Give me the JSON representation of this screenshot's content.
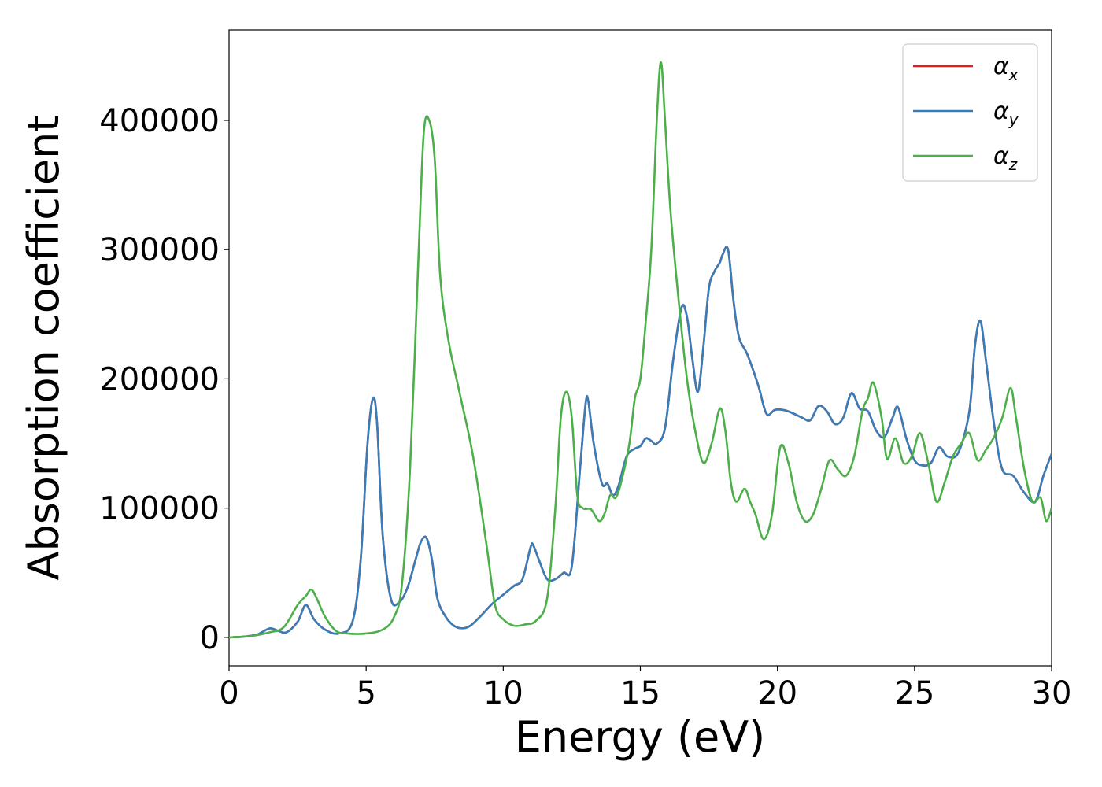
{
  "chart_data": {
    "type": "line",
    "title": "",
    "xlabel": "Energy (eV)",
    "ylabel": "Absorption coefficient",
    "xlim": [
      0,
      30
    ],
    "ylim": [
      -22000,
      470000
    ],
    "xticks": [
      0,
      5,
      10,
      15,
      20,
      25,
      30
    ],
    "yticks": [
      0,
      100000,
      200000,
      300000,
      400000
    ],
    "xtick_labels": [
      "0",
      "5",
      "10",
      "15",
      "20",
      "25",
      "30"
    ],
    "ytick_labels": [
      "0",
      "100000",
      "200000",
      "300000",
      "400000"
    ],
    "grid": false,
    "legend_position": "top-right",
    "series": [
      {
        "name": "x",
        "color": "#e41a1c",
        "x": [
          0,
          0.5,
          1,
          1.2,
          1.5,
          1.8,
          2.1,
          2.5,
          2.8,
          3.1,
          3.5,
          4,
          4.5,
          4.8,
          5.05,
          5.25,
          5.4,
          5.6,
          5.9,
          6.2,
          6.5,
          6.8,
          7.0,
          7.2,
          7.4,
          7.6,
          7.9,
          8.2,
          8.5,
          8.8,
          9.2,
          9.6,
          10,
          10.4,
          10.7,
          11.0,
          11.1,
          11.3,
          11.6,
          11.9,
          12.2,
          12.5,
          12.8,
          13.0,
          13.1,
          13.3,
          13.6,
          13.8,
          14.0,
          14.2,
          14.5,
          14.8,
          15.0,
          15.2,
          15.4,
          15.6,
          15.9,
          16.2,
          16.5,
          16.7,
          16.9,
          17.1,
          17.3,
          17.5,
          17.7,
          17.9,
          18.0,
          18.2,
          18.4,
          18.6,
          18.9,
          19.3,
          19.6,
          19.9,
          20.2,
          20.5,
          20.9,
          21.2,
          21.5,
          21.8,
          22.1,
          22.4,
          22.7,
          23.0,
          23.3,
          23.6,
          23.9,
          24.2,
          24.4,
          24.7,
          25.0,
          25.3,
          25.6,
          25.9,
          26.2,
          26.6,
          27.0,
          27.2,
          27.4,
          27.6,
          27.9,
          28.2,
          28.6,
          29.0,
          29.4,
          29.7,
          30.0
        ],
        "values": [
          0,
          500,
          2000,
          4000,
          7000,
          5000,
          4000,
          12000,
          25000,
          14000,
          6000,
          3000,
          12000,
          60000,
          150000,
          185000,
          165000,
          80000,
          30000,
          27000,
          38000,
          60000,
          74000,
          77000,
          60000,
          30000,
          16000,
          9000,
          7000,
          9000,
          17000,
          26000,
          33000,
          40000,
          45000,
          70000,
          71000,
          60000,
          45000,
          45000,
          50000,
          55000,
          130000,
          180000,
          183000,
          150000,
          119000,
          119000,
          110000,
          117000,
          140000,
          146000,
          148000,
          154000,
          152000,
          150000,
          162000,
          215000,
          255000,
          248000,
          215000,
          190000,
          225000,
          270000,
          283000,
          290000,
          296000,
          300000,
          260000,
          232000,
          219000,
          195000,
          173000,
          176000,
          176000,
          174000,
          170000,
          168000,
          179000,
          175000,
          165000,
          170000,
          189000,
          177000,
          175000,
          160000,
          155000,
          170000,
          178000,
          154000,
          137000,
          133000,
          135000,
          147000,
          140000,
          143000,
          175000,
          225000,
          245000,
          215000,
          165000,
          130000,
          125000,
          112000,
          105000,
          125000,
          142000
        ]
      },
      {
        "name": "y",
        "color": "#377eb8",
        "x": [
          0,
          0.5,
          1,
          1.2,
          1.5,
          1.8,
          2.1,
          2.5,
          2.8,
          3.1,
          3.5,
          4,
          4.5,
          4.8,
          5.05,
          5.25,
          5.4,
          5.6,
          5.9,
          6.2,
          6.5,
          6.8,
          7.0,
          7.2,
          7.4,
          7.6,
          7.9,
          8.2,
          8.5,
          8.8,
          9.2,
          9.6,
          10,
          10.4,
          10.7,
          11.0,
          11.1,
          11.3,
          11.6,
          11.9,
          12.2,
          12.5,
          12.8,
          13.0,
          13.1,
          13.3,
          13.6,
          13.8,
          14.0,
          14.2,
          14.5,
          14.8,
          15.0,
          15.2,
          15.4,
          15.6,
          15.9,
          16.2,
          16.5,
          16.7,
          16.9,
          17.1,
          17.3,
          17.5,
          17.7,
          17.9,
          18.0,
          18.2,
          18.4,
          18.6,
          18.9,
          19.3,
          19.6,
          19.9,
          20.2,
          20.5,
          20.9,
          21.2,
          21.5,
          21.8,
          22.1,
          22.4,
          22.7,
          23.0,
          23.3,
          23.6,
          23.9,
          24.2,
          24.4,
          24.7,
          25.0,
          25.3,
          25.6,
          25.9,
          26.2,
          26.6,
          27.0,
          27.2,
          27.4,
          27.6,
          27.9,
          28.2,
          28.6,
          29.0,
          29.4,
          29.7,
          30.0
        ],
        "values": [
          0,
          500,
          2000,
          4000,
          7000,
          5000,
          4000,
          12000,
          25000,
          14000,
          6000,
          3000,
          12000,
          60000,
          150000,
          185000,
          165000,
          80000,
          30000,
          27000,
          38000,
          60000,
          74000,
          77000,
          60000,
          30000,
          16000,
          9000,
          7000,
          9000,
          17000,
          26000,
          33000,
          40000,
          45000,
          70000,
          71000,
          60000,
          45000,
          45000,
          50000,
          55000,
          130000,
          180000,
          183000,
          150000,
          119000,
          119000,
          110000,
          117000,
          140000,
          146000,
          148000,
          154000,
          152000,
          150000,
          162000,
          215000,
          255000,
          248000,
          215000,
          190000,
          225000,
          270000,
          283000,
          290000,
          296000,
          300000,
          260000,
          232000,
          219000,
          195000,
          173000,
          176000,
          176000,
          174000,
          170000,
          168000,
          179000,
          175000,
          165000,
          170000,
          189000,
          177000,
          175000,
          160000,
          155000,
          170000,
          178000,
          154000,
          137000,
          133000,
          135000,
          147000,
          140000,
          143000,
          175000,
          225000,
          245000,
          215000,
          165000,
          130000,
          125000,
          112000,
          105000,
          125000,
          142000
        ]
      },
      {
        "name": "z",
        "color": "#4daf4a",
        "x": [
          0,
          0.8,
          1.5,
          2.0,
          2.5,
          2.8,
          3.0,
          3.2,
          3.5,
          3.9,
          4.3,
          5.0,
          5.6,
          6.0,
          6.3,
          6.6,
          6.9,
          7.1,
          7.3,
          7.5,
          7.7,
          8.0,
          8.4,
          8.9,
          9.4,
          9.7,
          10.0,
          10.4,
          10.8,
          11.2,
          11.6,
          11.9,
          12.1,
          12.3,
          12.5,
          12.7,
          12.9,
          13.2,
          13.5,
          13.7,
          13.9,
          14.1,
          14.3,
          14.6,
          14.8,
          15.0,
          15.2,
          15.4,
          15.6,
          15.75,
          15.9,
          16.1,
          16.4,
          16.7,
          17.0,
          17.3,
          17.6,
          17.9,
          18.1,
          18.3,
          18.5,
          18.8,
          19.0,
          19.2,
          19.5,
          19.8,
          20.1,
          20.4,
          20.7,
          21.0,
          21.3,
          21.6,
          21.9,
          22.2,
          22.5,
          22.8,
          23.1,
          23.3,
          23.5,
          23.8,
          24.0,
          24.3,
          24.6,
          24.9,
          25.2,
          25.5,
          25.8,
          26.1,
          26.4,
          26.7,
          27.0,
          27.3,
          27.6,
          27.9,
          28.2,
          28.5,
          28.7,
          29.0,
          29.3,
          29.6,
          29.8,
          30.0
        ],
        "values": [
          0,
          1000,
          4000,
          8000,
          25000,
          32000,
          37000,
          30000,
          16000,
          5000,
          3000,
          3000,
          6000,
          15000,
          40000,
          130000,
          290000,
          390000,
          400000,
          370000,
          280000,
          230000,
          190000,
          140000,
          70000,
          25000,
          14000,
          9000,
          10000,
          13000,
          30000,
          100000,
          170000,
          190000,
          170000,
          110000,
          100000,
          99000,
          90000,
          96000,
          110000,
          108000,
          120000,
          150000,
          185000,
          200000,
          245000,
          300000,
          400000,
          445000,
          400000,
          330000,
          260000,
          200000,
          160000,
          135000,
          150000,
          177000,
          160000,
          120000,
          105000,
          115000,
          105000,
          95000,
          76000,
          95000,
          147000,
          135000,
          105000,
          90000,
          95000,
          115000,
          137000,
          130000,
          125000,
          140000,
          175000,
          185000,
          197000,
          170000,
          138000,
          154000,
          135000,
          140000,
          158000,
          135000,
          105000,
          120000,
          140000,
          150000,
          158000,
          137000,
          145000,
          155000,
          170000,
          193000,
          170000,
          130000,
          105000,
          108000,
          90000,
          100000
        ]
      }
    ]
  }
}
